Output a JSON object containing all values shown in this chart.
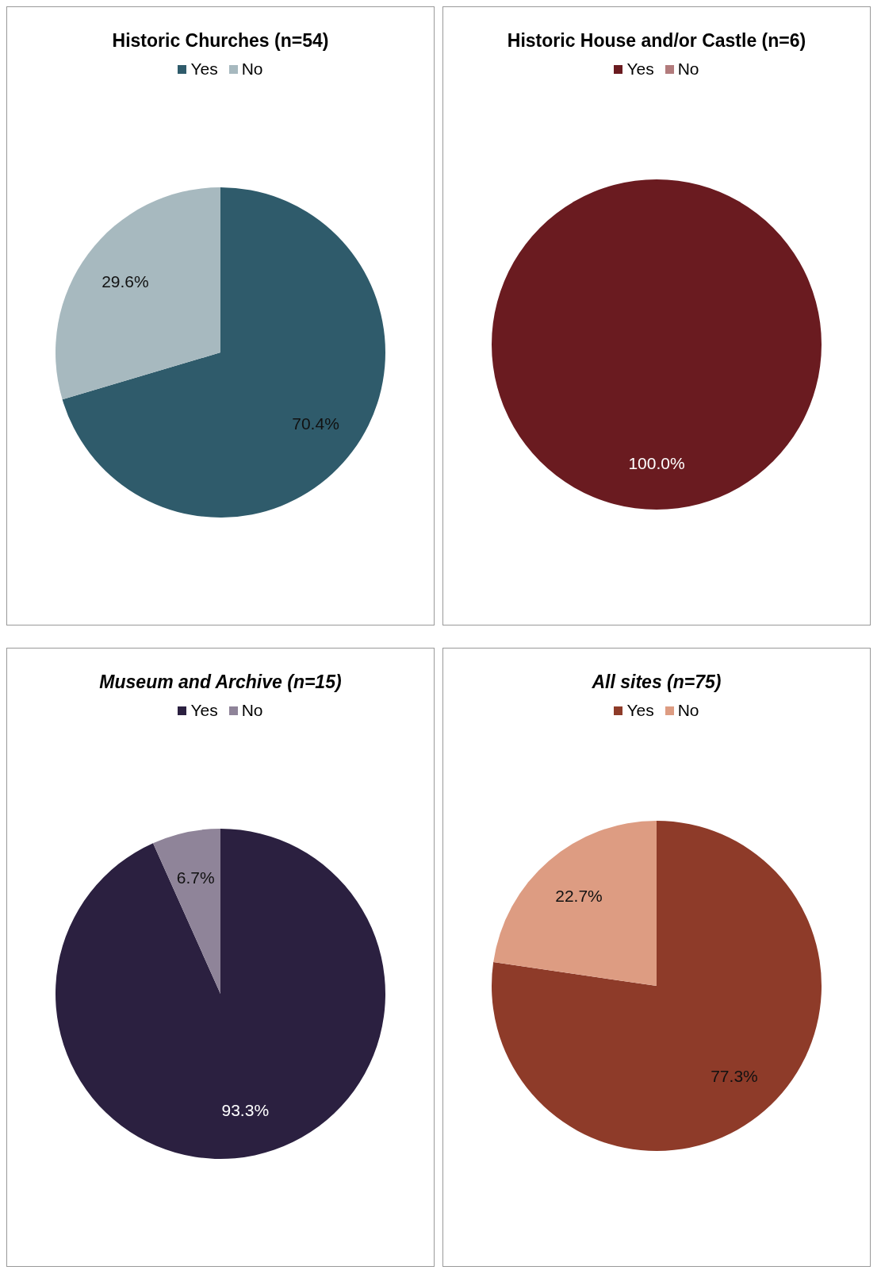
{
  "chart_data": [
    {
      "type": "pie",
      "title": "Historic Churches (n=54)",
      "categories": [
        "Yes",
        "No"
      ],
      "values": [
        70.4,
        29.6
      ],
      "colors": [
        "#2f5b6b",
        "#a7b9bf"
      ],
      "value_labels": [
        "70.4%",
        "29.6%"
      ],
      "legend": "top"
    },
    {
      "type": "pie",
      "title": "Historic House and/or Castle (n=6)",
      "categories": [
        "Yes",
        "No"
      ],
      "values": [
        100,
        0
      ],
      "colors": [
        "#6a1b20",
        "#b27b7c"
      ],
      "value_labels": [
        "100.0%",
        null
      ],
      "legend": "top"
    },
    {
      "type": "pie",
      "title": "Museum and Archive (n=15)",
      "categories": [
        "Yes",
        "No"
      ],
      "values": [
        93.3,
        6.7
      ],
      "colors": [
        "#2b2040",
        "#8f8499"
      ],
      "value_labels": [
        "93.3%",
        "6.7%"
      ],
      "legend": "top"
    },
    {
      "type": "pie",
      "title": "All sites (n=75)",
      "categories": [
        "Yes",
        "No"
      ],
      "values": [
        77.3,
        22.7
      ],
      "colors": [
        "#8e3b29",
        "#dd9c82"
      ],
      "value_labels": [
        "77.3%",
        "22.7%"
      ],
      "legend": "top"
    }
  ]
}
